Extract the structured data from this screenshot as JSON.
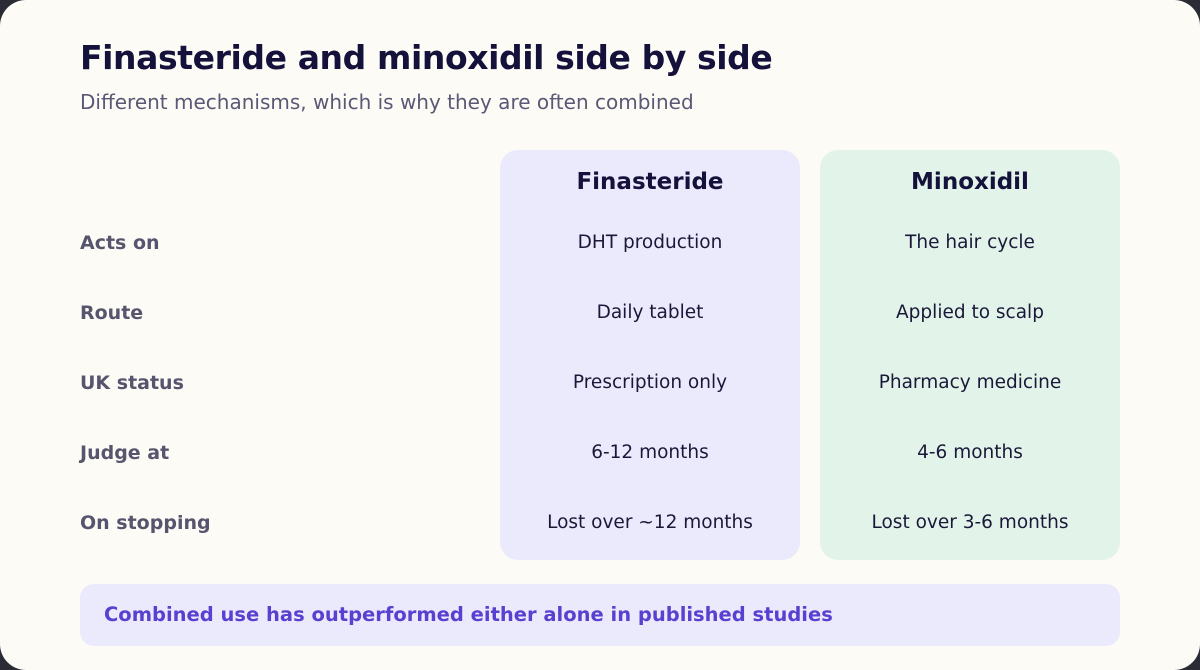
{
  "header": {
    "title": "Finasteride and minoxidil side by side",
    "subtitle": "Different mechanisms, which is why they are often combined"
  },
  "columns": {
    "finasteride": "Finasteride",
    "minoxidil": "Minoxidil"
  },
  "rows": [
    {
      "label": "Acts on",
      "finasteride": "DHT production",
      "minoxidil": "The hair cycle"
    },
    {
      "label": "Route",
      "finasteride": "Daily tablet",
      "minoxidil": "Applied to scalp"
    },
    {
      "label": "UK status",
      "finasteride": "Prescription only",
      "minoxidil": "Pharmacy medicine"
    },
    {
      "label": "Judge at",
      "finasteride": "6-12 months",
      "minoxidil": "4-6 months"
    },
    {
      "label": "On stopping",
      "finasteride": "Lost over ~12 months",
      "minoxidil": "Lost over 3-6 months"
    }
  ],
  "callout": {
    "text": "Combined use has outperformed either alone in published studies"
  },
  "colors": {
    "background": "#fdfbf6",
    "finasteride_panel": "#ebe9fc",
    "minoxidil_panel": "#e2f3ea",
    "callout_text": "#5a40d0"
  }
}
